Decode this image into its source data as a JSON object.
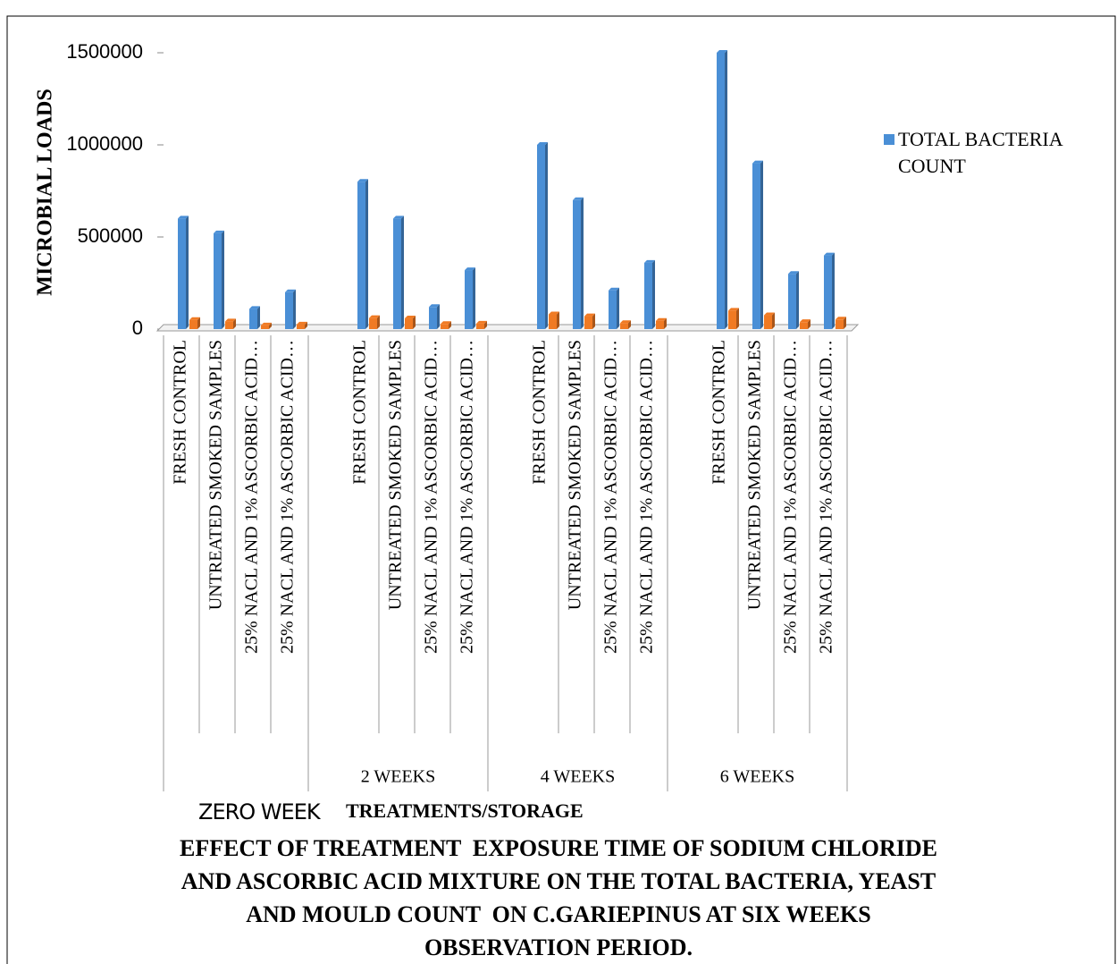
{
  "chart_data": {
    "type": "bar",
    "title": "EFFECT OF TREATMENT  EXPOSURE TIME OF SODIUM CHLORIDE AND ASCORBIC ACID MIXTURE ON THE TOTAL BACTERIA, YEAST  AND MOULD COUNT  ON C.GARIEPINUS AT SIX WEEKS OBSERVATION PERIOD.",
    "y_label": "MICROBIAL LOADS",
    "x_label": "TREATMENTS/STORAGE",
    "groups": [
      "ZERO WEEK",
      "2 WEEKS",
      "4 WEEKS",
      "6 WEEKS"
    ],
    "categories": [
      "FRESH CONTROL",
      "UNTREATED SMOKED SAMPLES",
      "25% NACL AND 1% ASCORBIC ACID…",
      "25% NACL AND 1% ASCORBIC ACID…",
      "FRESH CONTROL",
      "UNTREATED SMOKED SAMPLES",
      "25% NACL AND 1% ASCORBIC ACID…",
      "25% NACL AND 1% ASCORBIC ACID…",
      "FRESH CONTROL",
      "UNTREATED SMOKED SAMPLES",
      "25% NACL AND 1% ASCORBIC ACID…",
      "25% NACL AND 1% ASCORBIC ACID…",
      "FRESH CONTROL",
      "UNTREATED SMOKED SAMPLES",
      "25% NACL AND 1% ASCORBIC ACID…",
      "25% NACL AND 1% ASCORBIC ACID…"
    ],
    "series": [
      {
        "name": "TOTAL BACTERIA COUNT",
        "color": "#4a8fd6",
        "values": [
          600000,
          520000,
          110000,
          200000,
          800000,
          600000,
          120000,
          320000,
          1000000,
          700000,
          210000,
          360000,
          1500000,
          900000,
          300000,
          400000
        ]
      },
      {
        "name": null,
        "color": "#f07a23",
        "values": [
          50000,
          42000,
          20000,
          25000,
          60000,
          58000,
          28000,
          30000,
          80000,
          70000,
          33000,
          45000,
          100000,
          75000,
          38000,
          52000
        ]
      }
    ],
    "ylim": [
      0,
      1500000
    ],
    "yticks": [
      0,
      500000,
      1000000,
      1500000
    ],
    "legend": "right"
  }
}
